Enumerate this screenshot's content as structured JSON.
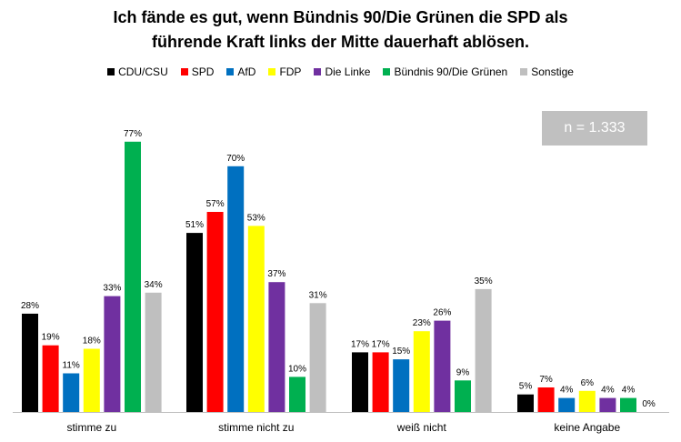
{
  "title_lines": [
    "Ich fände es gut, wenn Bündnis 90/Die Grünen die SPD als",
    "führende Kraft links der Mitte dauerhaft ablösen."
  ],
  "note": "n = 1.333",
  "colors": {
    "CDU/CSU": "#000000",
    "SPD": "#ff0000",
    "AfD": "#0070c0",
    "FDP": "#ffff00",
    "Die Linke": "#7030a0",
    "Bündnis 90/Die Grünen": "#00b050",
    "Sonstige": "#bfbfbf",
    "note_background": "#c0c0c0"
  },
  "chart_data": {
    "type": "bar",
    "categories": [
      "stimme zu",
      "stimme nicht zu",
      "weiß nicht",
      "keine Angabe"
    ],
    "series": [
      {
        "name": "CDU/CSU",
        "values": [
          28,
          51,
          17,
          5
        ],
        "labels": [
          "28%",
          "51%",
          "17%",
          "5%"
        ]
      },
      {
        "name": "SPD",
        "values": [
          19,
          57,
          17,
          7
        ],
        "labels": [
          "19%",
          "57%",
          "17%",
          "7%"
        ]
      },
      {
        "name": "AfD",
        "values": [
          11,
          70,
          15,
          4
        ],
        "labels": [
          "11%",
          "70%",
          "15%",
          "4%"
        ]
      },
      {
        "name": "FDP",
        "values": [
          18,
          53,
          23,
          6
        ],
        "labels": [
          "18%",
          "53%",
          "23%",
          "6%"
        ]
      },
      {
        "name": "Die Linke",
        "values": [
          33,
          37,
          26,
          4
        ],
        "labels": [
          "33%",
          "37%",
          "26%",
          "4%"
        ]
      },
      {
        "name": "Bündnis 90/Die Grünen",
        "values": [
          77,
          10,
          9,
          4
        ],
        "labels": [
          "77%",
          "10%",
          "9%",
          "4%"
        ]
      },
      {
        "name": "Sonstige",
        "values": [
          34,
          31,
          35,
          0
        ],
        "labels": [
          "34%",
          "31%",
          "35%",
          "0%"
        ]
      }
    ],
    "ylim": [
      0,
      80
    ],
    "grid": false,
    "legend_position": "top"
  }
}
